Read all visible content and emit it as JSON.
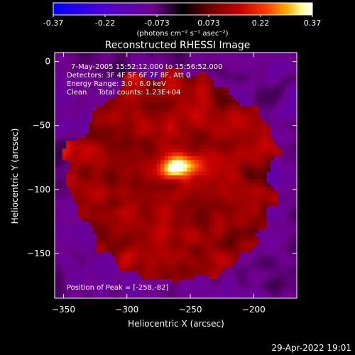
{
  "colorbar": {
    "ticks": [
      "-0.37",
      "-0.22",
      "-0.073",
      "0.073",
      "0.22",
      "0.37"
    ],
    "units_label": "(photons cm⁻² s⁻¹ asec⁻²)",
    "range": [
      -0.37,
      0.37
    ],
    "colormap": [
      "#0000ff",
      "#4a00d8",
      "#700090",
      "#000000",
      "#6a0000",
      "#c40000",
      "#ff3a00",
      "#ffaa00",
      "#ffff99",
      "#ffffff"
    ]
  },
  "chart_data": {
    "type": "heatmap",
    "title": "Reconstructed RHESSI Image",
    "xlabel": "Heliocentric X (arcsec)",
    "ylabel": "Heliocentric Y (arcsec)",
    "xlim": [
      -357,
      -166
    ],
    "ylim": [
      -185,
      7
    ],
    "xticks": [
      -350,
      -300,
      -250,
      -200
    ],
    "yticks": [
      0,
      -50,
      -100,
      -150
    ],
    "annotations": [
      "7-May-2005 15:52:12.000 to 15:56:52.000",
      "Detectors: 3F 4F 5F 6F 7F 8F, Att 0",
      "Energy Range: 3.0 - 6.0 keV",
      "Clean     Total counts: 1.23E+04"
    ],
    "peak_label": "Position of Peak = [-258,-82]",
    "peak": [
      -258,
      -82
    ],
    "disk_center": [
      -262,
      -90
    ],
    "disk_radius": 82
  },
  "timestamp": "29-Apr-2022 19:01"
}
